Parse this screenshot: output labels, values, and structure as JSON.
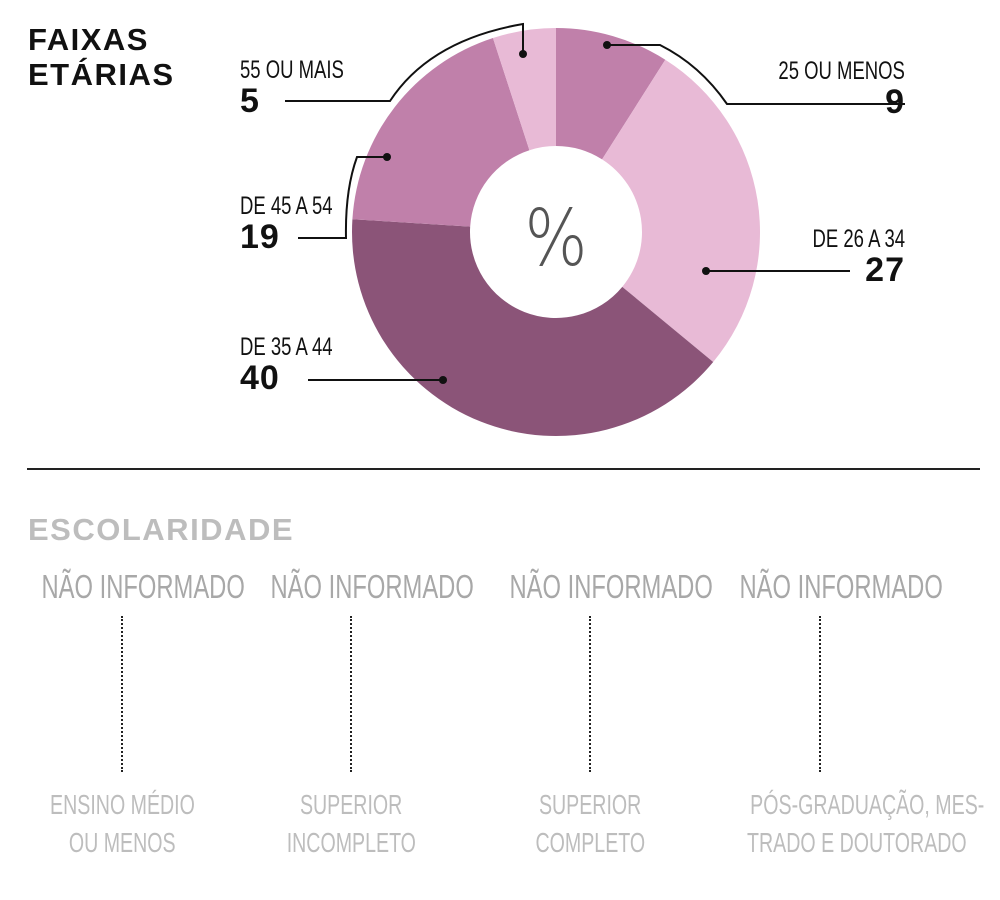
{
  "chart_data": {
    "type": "pie",
    "title": "FAIXAS ETÁRIAS",
    "center_label": "%",
    "slices": [
      {
        "label": "25 OU MENOS",
        "value": 9,
        "color": "#c080aa"
      },
      {
        "label": "DE 26 A 34",
        "value": 27,
        "color": "#e8bad6"
      },
      {
        "label": "DE 35 A 44",
        "value": 40,
        "color": "#8b5478"
      },
      {
        "label": "DE 45 A 54",
        "value": 19,
        "color": "#c080aa"
      },
      {
        "label": "55 OU MAIS",
        "value": 5,
        "color": "#e8bad6"
      }
    ]
  },
  "education": {
    "title": "ESCOLARIDADE",
    "columns": [
      {
        "value": "NÃO INFORMADO",
        "line1": "ENSINO MÉDIO",
        "line2": "OU MENOS"
      },
      {
        "value": "NÃO INFORMADO",
        "line1": "SUPERIOR",
        "line2": "INCOMPLETO"
      },
      {
        "value": "NÃO INFORMADO",
        "line1": "SUPERIOR",
        "line2": "COMPLETO"
      },
      {
        "value": "NÃO INFORMADO",
        "line1": "PÓS-GRADUAÇÃO, MES-",
        "line2": "TRADO E DOUTORADO"
      }
    ]
  }
}
